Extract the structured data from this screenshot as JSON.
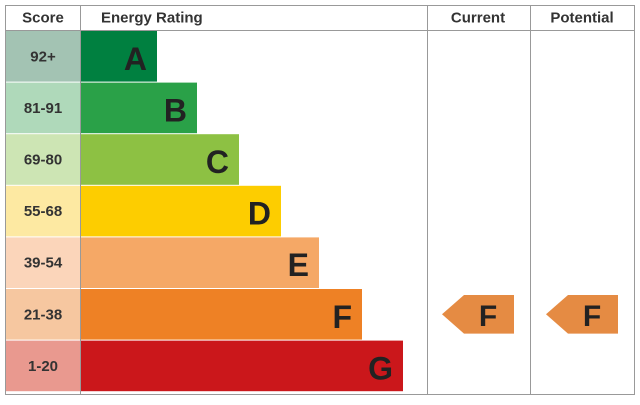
{
  "header": {
    "score": "Score",
    "rating": "Energy Rating",
    "current": "Current",
    "potential": "Potential"
  },
  "rows": [
    {
      "score": "92+",
      "letter": "A",
      "color": "#008040",
      "score_color": "#a3c3b3"
    },
    {
      "score": "81-91",
      "letter": "B",
      "color": "#2aa148",
      "score_color": "#afd9ba"
    },
    {
      "score": "69-80",
      "letter": "C",
      "color": "#8dc143",
      "score_color": "#cde5b4"
    },
    {
      "score": "55-68",
      "letter": "D",
      "color": "#fdcd00",
      "score_color": "#fde9a2"
    },
    {
      "score": "39-54",
      "letter": "E",
      "color": "#f5a866",
      "score_color": "#fbd5ba"
    },
    {
      "score": "21-38",
      "letter": "F",
      "color": "#ee8125",
      "score_color": "#f6c7a0"
    },
    {
      "score": "1-20",
      "letter": "G",
      "color": "#cb171b",
      "score_color": "#e9998f"
    }
  ],
  "current": {
    "letter": "F",
    "color": "#e58b43"
  },
  "potential": {
    "letter": "F",
    "color": "#e58b43"
  }
}
